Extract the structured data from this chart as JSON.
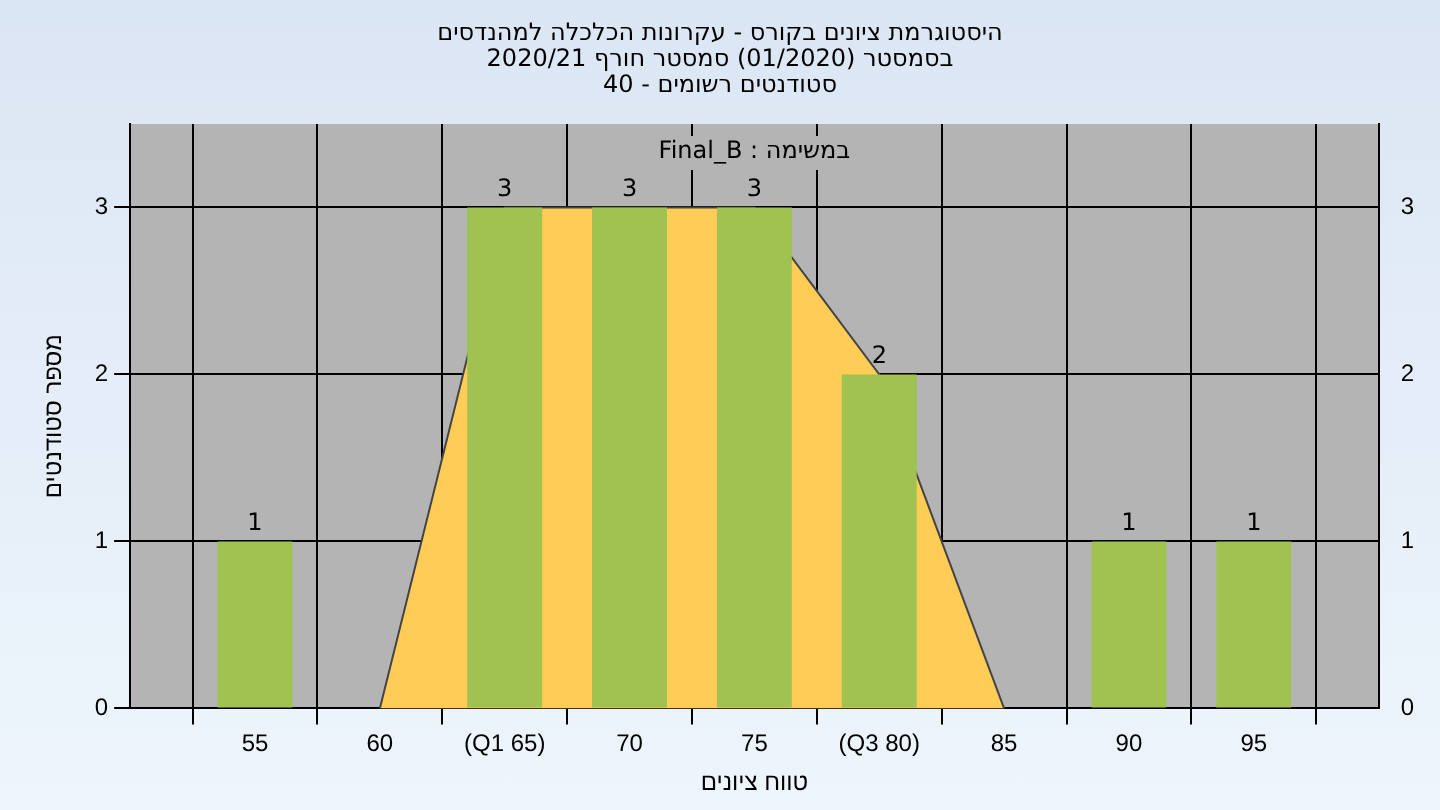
{
  "chart_data": {
    "type": "bar",
    "title": "היסטוגרמת ציונים בקורס - עקרונות הכלכלה למהנדסים\nבסמסטר  (01/2020)  סמסטר חורף 2020/21\nסטודנטים רשומים - 40",
    "xlabel": "טווח ציונים",
    "ylabel": "מספר סטודנטים",
    "annotations": [
      "במשימה : Final_B"
    ],
    "categories": [
      null,
      "55",
      "60",
      "(Q1 65)",
      "70",
      "75",
      "(Q3 80)",
      "85",
      "90",
      "95",
      null
    ],
    "series": [
      {
        "color": "#9fc250",
        "values": [
          null,
          1,
          0,
          3,
          3,
          3,
          2,
          0,
          1,
          1,
          null
        ],
        "value_labels": [
          null,
          "1",
          null,
          "3",
          "3",
          "3",
          "2",
          null,
          "1",
          "1",
          null
        ]
      },
      {
        "type": "area",
        "color": "#ffcc55",
        "values": [
          null,
          null,
          0,
          3,
          3,
          3,
          2,
          0,
          null,
          null,
          null
        ]
      }
    ],
    "ylim": [
      0,
      3.5
    ],
    "yticks": [
      0,
      1,
      2,
      3
    ],
    "y2lim": [
      0,
      3.5
    ],
    "y2ticks": [
      0,
      1,
      2,
      3
    ],
    "grid": true,
    "legend": false
  }
}
